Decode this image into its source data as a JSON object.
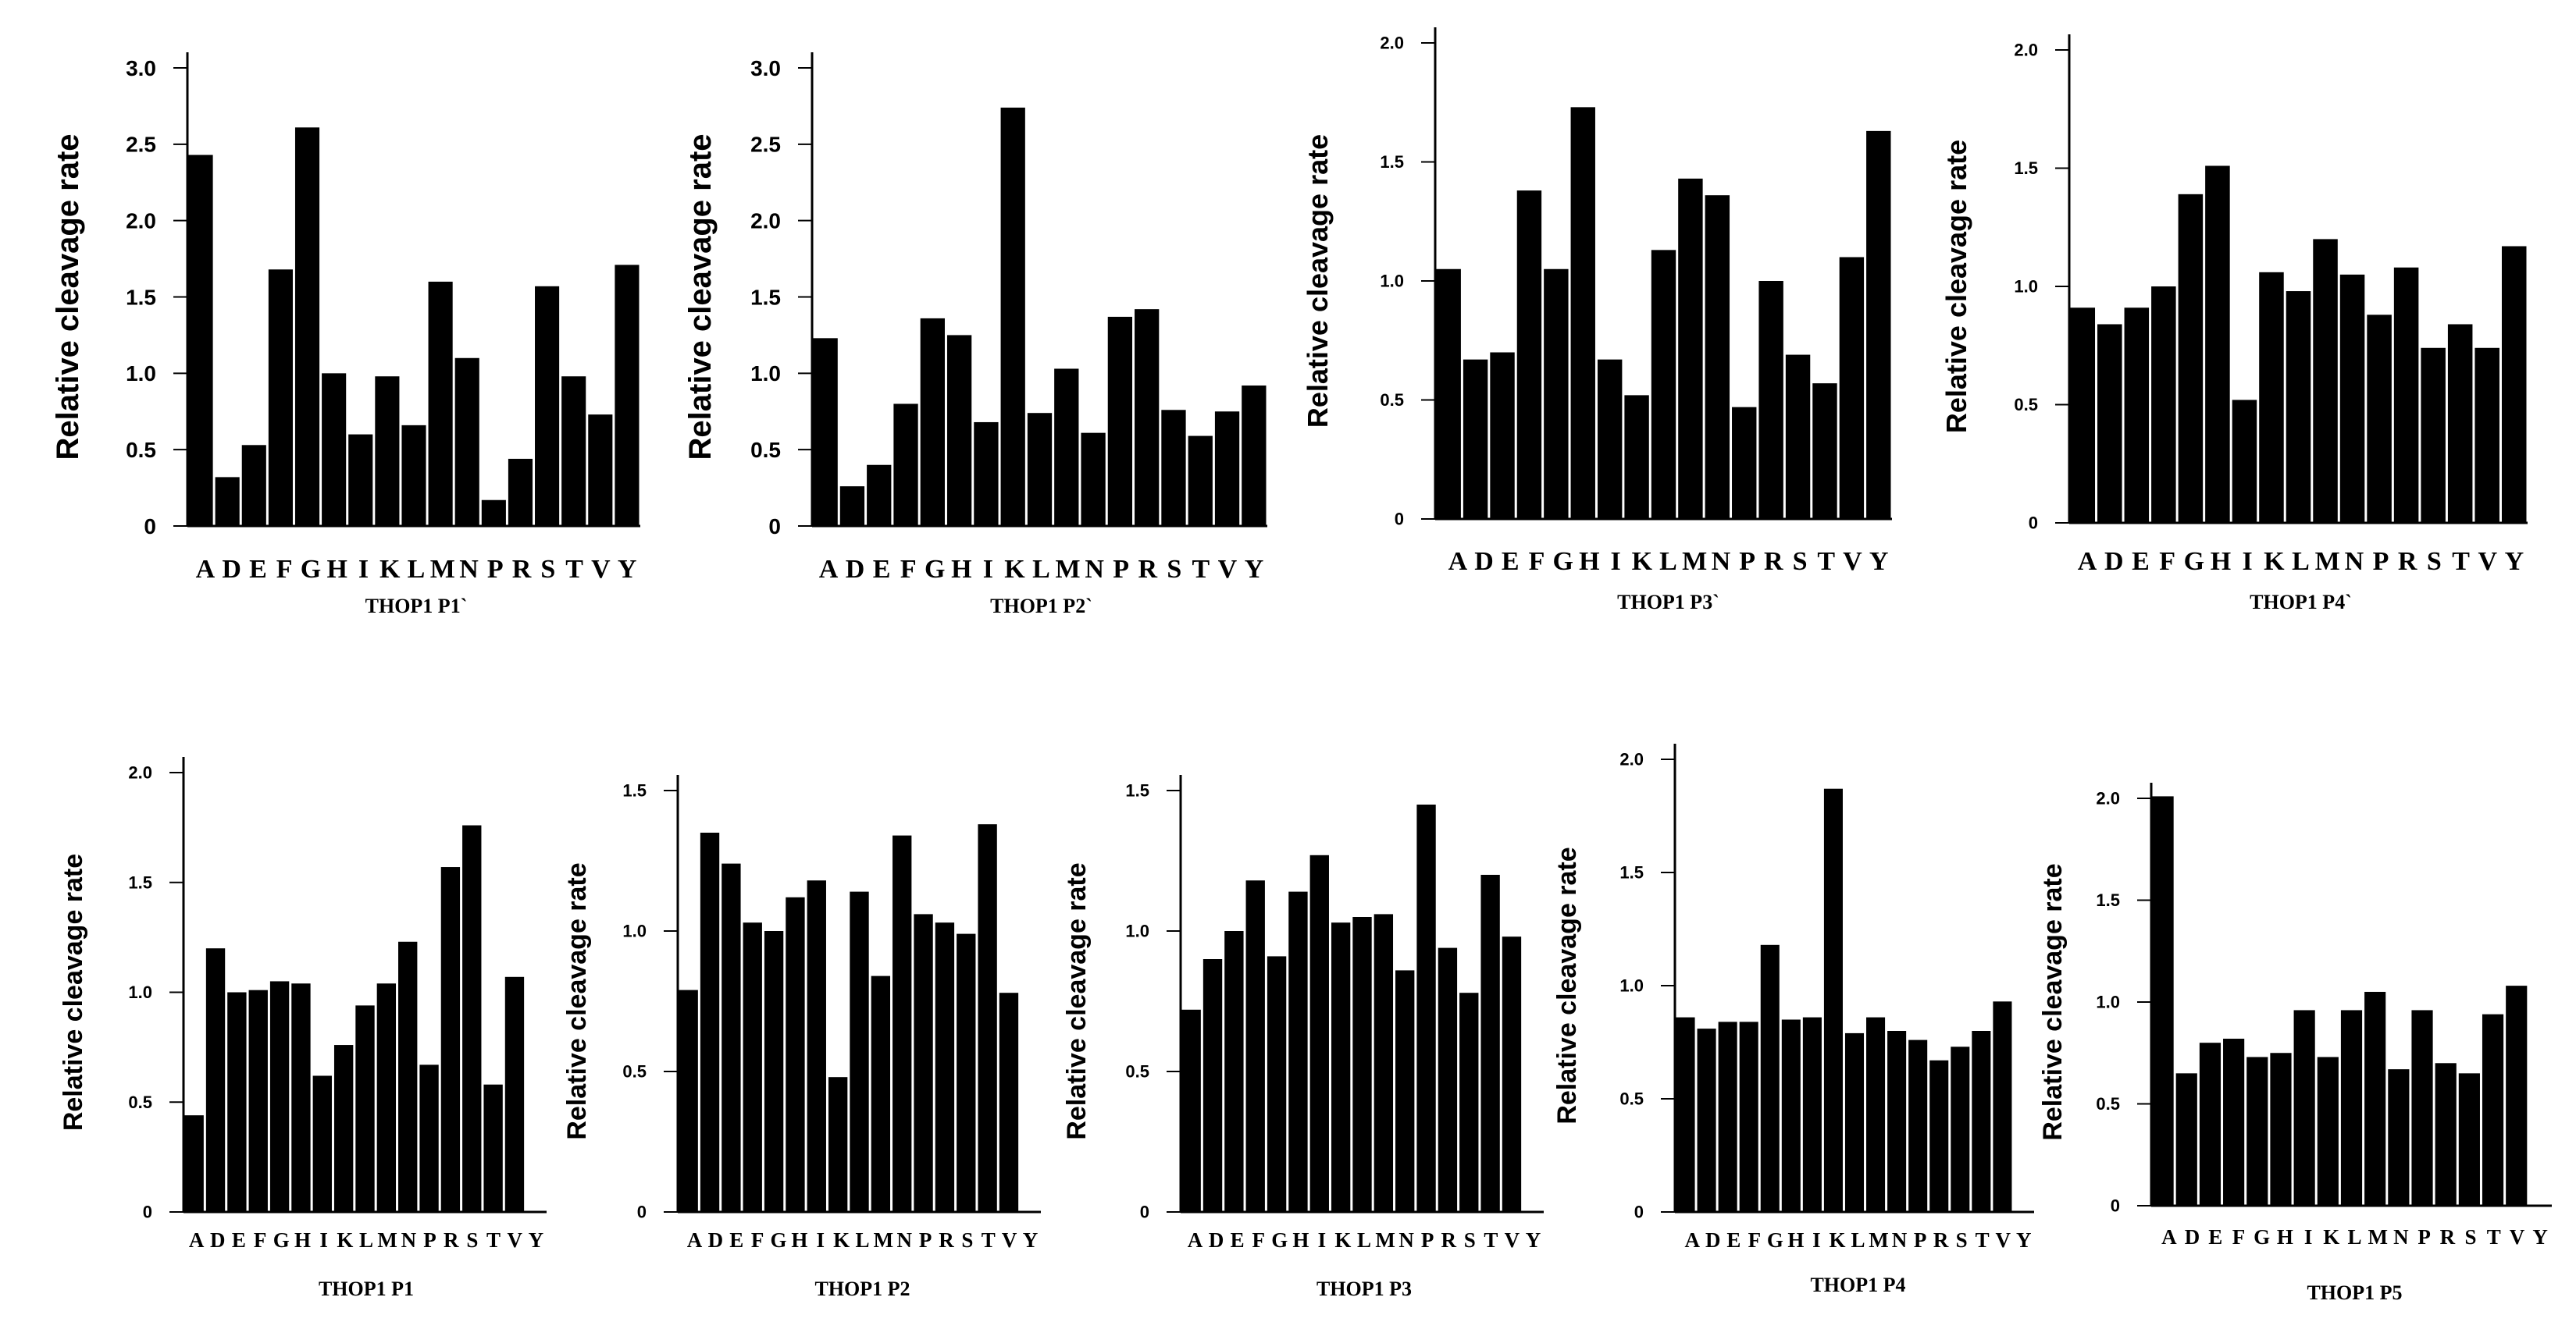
{
  "figure": {
    "categories": [
      "A",
      "D",
      "E",
      "F",
      "G",
      "H",
      "I",
      "K",
      "L",
      "M",
      "N",
      "P",
      "R",
      "S",
      "T",
      "V",
      "Y"
    ],
    "bar_color": "#000000"
  },
  "chart_data": [
    {
      "type": "bar",
      "title": "THOP1 P1`",
      "xlabel": "",
      "ylabel": "Relative cleavage rate",
      "ylim": [
        0,
        3.0
      ],
      "yticks": [
        0,
        0.5,
        1.0,
        1.5,
        2.0,
        2.5,
        3.0
      ],
      "ytick_labels": [
        "0",
        "0.5",
        "1.0",
        "1.5",
        "2.0",
        "2.5",
        "3.0"
      ],
      "categories": [
        "A",
        "D",
        "E",
        "F",
        "G",
        "H",
        "I",
        "K",
        "L",
        "M",
        "N",
        "P",
        "R",
        "S",
        "T",
        "V",
        "Y"
      ],
      "values": [
        2.43,
        0.32,
        0.53,
        1.68,
        2.61,
        1.0,
        0.6,
        0.98,
        0.66,
        1.6,
        1.1,
        0.17,
        0.44,
        1.57,
        0.98,
        0.73,
        1.71
      ]
    },
    {
      "type": "bar",
      "title": "THOP1 P2`",
      "xlabel": "",
      "ylabel": "Relative cleavage rate",
      "ylim": [
        0,
        3.0
      ],
      "yticks": [
        0,
        0.5,
        1.0,
        1.5,
        2.0,
        2.5,
        3.0
      ],
      "ytick_labels": [
        "0",
        "0.5",
        "1.0",
        "1.5",
        "2.0",
        "2.5",
        "3.0"
      ],
      "categories": [
        "A",
        "D",
        "E",
        "F",
        "G",
        "H",
        "I",
        "K",
        "L",
        "M",
        "N",
        "P",
        "R",
        "S",
        "T",
        "V",
        "Y"
      ],
      "values": [
        1.23,
        0.26,
        0.4,
        0.8,
        1.36,
        1.25,
        0.68,
        2.74,
        0.74,
        1.03,
        0.61,
        1.37,
        1.42,
        0.76,
        0.59,
        0.75,
        0.92
      ]
    },
    {
      "type": "bar",
      "title": "THOP1 P3`",
      "xlabel": "",
      "ylabel": "Relative cleavage rate",
      "ylim": [
        0,
        2.0
      ],
      "yticks": [
        0,
        0.5,
        1.0,
        1.5,
        2.0
      ],
      "ytick_labels": [
        "0",
        "0.5",
        "1.0",
        "1.5",
        "2.0"
      ],
      "categories": [
        "A",
        "D",
        "E",
        "F",
        "G",
        "H",
        "I",
        "K",
        "L",
        "M",
        "N",
        "P",
        "R",
        "S",
        "T",
        "V",
        "Y"
      ],
      "values": [
        1.05,
        0.67,
        0.7,
        1.38,
        1.05,
        1.73,
        0.67,
        0.52,
        1.13,
        1.43,
        1.36,
        0.47,
        1.0,
        0.69,
        0.57,
        1.1,
        1.63
      ]
    },
    {
      "type": "bar",
      "title": "THOP1 P4`",
      "xlabel": "",
      "ylabel": "Relative cleavage rate",
      "ylim": [
        0,
        2.0
      ],
      "yticks": [
        0,
        0.5,
        1.0,
        1.5,
        2.0
      ],
      "ytick_labels": [
        "0",
        "0.5",
        "1.0",
        "1.5",
        "2.0"
      ],
      "categories": [
        "A",
        "D",
        "E",
        "F",
        "G",
        "H",
        "I",
        "K",
        "L",
        "M",
        "N",
        "P",
        "R",
        "S",
        "T",
        "V",
        "Y"
      ],
      "values": [
        0.91,
        0.84,
        0.91,
        1.0,
        1.39,
        1.51,
        0.52,
        1.06,
        0.98,
        1.2,
        1.05,
        0.88,
        1.08,
        0.74,
        0.84,
        0.74,
        1.17
      ]
    },
    {
      "type": "bar",
      "title": "THOP1 P1",
      "xlabel": "",
      "ylabel": "Relative cleavage rate",
      "ylim": [
        0,
        2.0
      ],
      "yticks": [
        0,
        0.5,
        1.0,
        1.5,
        2.0
      ],
      "ytick_labels": [
        "0",
        "0.5",
        "1.0",
        "1.5",
        "2.0"
      ],
      "categories": [
        "A",
        "D",
        "E",
        "F",
        "G",
        "H",
        "I",
        "K",
        "L",
        "M",
        "N",
        "P",
        "R",
        "S",
        "T",
        "V",
        "Y"
      ],
      "values": [
        0.44,
        1.2,
        1.0,
        1.01,
        1.05,
        1.04,
        0.62,
        0.76,
        0.94,
        1.04,
        1.23,
        0.67,
        1.57,
        1.76,
        0.58,
        1.07,
        0.0
      ]
    },
    {
      "type": "bar",
      "title": "THOP1 P2",
      "xlabel": "",
      "ylabel": "Relative cleavage rate",
      "ylim": [
        0,
        1.5
      ],
      "yticks": [
        0,
        0.5,
        1.0,
        1.5
      ],
      "ytick_labels": [
        "0",
        "0.5",
        "1.0",
        "1.5"
      ],
      "categories": [
        "A",
        "D",
        "E",
        "F",
        "G",
        "H",
        "I",
        "K",
        "L",
        "M",
        "N",
        "P",
        "R",
        "S",
        "T",
        "V",
        "Y"
      ],
      "values": [
        0.79,
        1.35,
        1.24,
        1.03,
        1.0,
        1.12,
        1.18,
        0.48,
        1.14,
        0.84,
        1.34,
        1.06,
        1.03,
        0.99,
        1.38,
        0.78,
        0.0
      ]
    },
    {
      "type": "bar",
      "title": "THOP1 P3",
      "xlabel": "",
      "ylabel": "Relative cleavage rate",
      "ylim": [
        0,
        1.5
      ],
      "yticks": [
        0,
        0.5,
        1.0,
        1.5
      ],
      "ytick_labels": [
        "0",
        "0.5",
        "1.0",
        "1.5"
      ],
      "categories": [
        "A",
        "D",
        "E",
        "F",
        "G",
        "H",
        "I",
        "K",
        "L",
        "M",
        "N",
        "P",
        "R",
        "S",
        "T",
        "V",
        "Y"
      ],
      "values": [
        0.72,
        0.9,
        1.0,
        1.18,
        0.91,
        1.14,
        1.27,
        1.03,
        1.05,
        1.06,
        0.86,
        1.45,
        0.94,
        0.78,
        1.2,
        0.98,
        0.0
      ]
    },
    {
      "type": "bar",
      "title": "THOP1 P4",
      "xlabel": "",
      "ylabel": "Relative cleavage rate",
      "ylim": [
        0,
        2.0
      ],
      "yticks": [
        0,
        0.5,
        1.0,
        1.5,
        2.0
      ],
      "ytick_labels": [
        "0",
        "0.5",
        "1.0",
        "1.5",
        "2.0"
      ],
      "categories": [
        "A",
        "D",
        "E",
        "F",
        "G",
        "H",
        "I",
        "K",
        "L",
        "M",
        "N",
        "P",
        "R",
        "S",
        "T",
        "V",
        "Y"
      ],
      "values": [
        0.86,
        0.81,
        0.84,
        0.84,
        1.18,
        0.85,
        0.86,
        1.87,
        0.79,
        0.86,
        0.8,
        0.76,
        0.67,
        0.73,
        0.8,
        0.93,
        0.0
      ]
    },
    {
      "type": "bar",
      "title": "THOP1 P5",
      "xlabel": "",
      "ylabel": "Relative cleavage rate",
      "ylim": [
        0,
        2.0
      ],
      "yticks": [
        0,
        0.5,
        1.0,
        1.5,
        2.0
      ],
      "ytick_labels": [
        "0",
        "0.5",
        "1.0",
        "1.5",
        "2.0"
      ],
      "categories": [
        "A",
        "D",
        "E",
        "F",
        "G",
        "H",
        "I",
        "K",
        "L",
        "M",
        "N",
        "P",
        "R",
        "S",
        "T",
        "V",
        "Y"
      ],
      "values": [
        2.01,
        0.65,
        0.8,
        0.82,
        0.73,
        0.75,
        0.96,
        0.73,
        0.96,
        1.05,
        0.67,
        0.96,
        0.7,
        0.65,
        0.94,
        1.08,
        0.0
      ]
    }
  ]
}
